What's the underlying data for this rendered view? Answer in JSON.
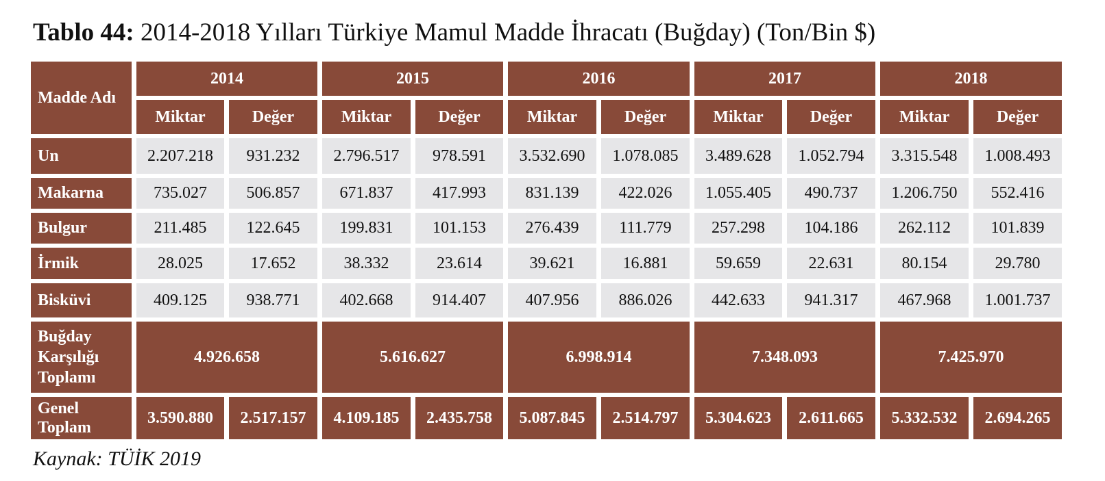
{
  "title": {
    "label": "Tablo 44:",
    "text": "2014-2018 Yılları Türkiye Mamul Madde İhracatı (Buğday) (Ton/Bin $)"
  },
  "table": {
    "first_header": "Madde Adı",
    "years": [
      "2014",
      "2015",
      "2016",
      "2017",
      "2018"
    ],
    "sub_headers": [
      "Miktar",
      "Değer"
    ],
    "rows": [
      {
        "name": "Un",
        "values": [
          "2.207.218",
          "931.232",
          "2.796.517",
          "978.591",
          "3.532.690",
          "1.078.085",
          "3.489.628",
          "1.052.794",
          "3.315.548",
          "1.008.493"
        ]
      },
      {
        "name": "Makarna",
        "values": [
          "735.027",
          "506.857",
          "671.837",
          "417.993",
          "831.139",
          "422.026",
          "1.055.405",
          "490.737",
          "1.206.750",
          "552.416"
        ]
      },
      {
        "name": "Bulgur",
        "values": [
          "211.485",
          "122.645",
          "199.831",
          "101.153",
          "276.439",
          "111.779",
          "257.298",
          "104.186",
          "262.112",
          "101.839"
        ]
      },
      {
        "name": "İrmik",
        "values": [
          "28.025",
          "17.652",
          "38.332",
          "23.614",
          "39.621",
          "16.881",
          "59.659",
          "22.631",
          "80.154",
          "29.780"
        ]
      },
      {
        "name": "Bisküvi",
        "values": [
          "409.125",
          "938.771",
          "402.668",
          "914.407",
          "407.956",
          "886.026",
          "442.633",
          "941.317",
          "467.968",
          "1.001.737"
        ]
      }
    ],
    "wheat_total": {
      "name_lines": [
        "Buğday",
        "Karşılığı",
        "Toplamı"
      ],
      "values": [
        "4.926.658",
        "5.616.627",
        "6.998.914",
        "7.348.093",
        "7.425.970"
      ]
    },
    "grand_total": {
      "name_lines": [
        "Genel",
        "Toplam"
      ],
      "values": [
        "3.590.880",
        "2.517.157",
        "4.109.185",
        "2.435.758",
        "5.087.845",
        "2.514.797",
        "5.304.623",
        "2.611.665",
        "5.332.532",
        "2.694.265"
      ]
    }
  },
  "source": "Kaynak: TÜİK 2019"
}
